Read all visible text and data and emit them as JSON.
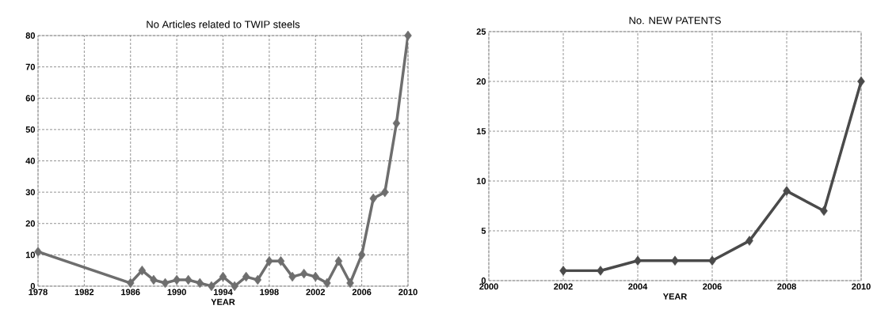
{
  "chart_data": [
    {
      "type": "line",
      "title": "No Articles related to TWIP steels",
      "xlabel": "YEAR",
      "x": [
        1978,
        1986,
        1987,
        1988,
        1989,
        1990,
        1991,
        1992,
        1993,
        1994,
        1995,
        1996,
        1997,
        1998,
        1999,
        2000,
        2001,
        2002,
        2003,
        2004,
        2005,
        2006,
        2007,
        2008,
        2009,
        2010
      ],
      "series": [
        {
          "color": "#6e6e6e",
          "values": [
            11,
            1,
            5,
            2,
            1,
            2,
            2,
            1,
            0,
            3,
            0,
            3,
            2,
            8,
            8,
            3,
            4,
            3,
            1,
            8,
            1,
            10,
            28,
            30,
            52,
            80
          ]
        }
      ],
      "xlim": [
        1978,
        2010
      ],
      "xticks": [
        1978,
        1982,
        1986,
        1990,
        1994,
        1998,
        2002,
        2006,
        2010
      ],
      "ylim": [
        0,
        80
      ],
      "yticks": [
        0,
        10,
        20,
        30,
        40,
        50,
        60,
        70,
        80
      ],
      "grid": true,
      "marker": "diamond"
    },
    {
      "type": "line",
      "title": "No.  NEW PATENTS",
      "xlabel": "YEAR",
      "x": [
        2002,
        2003,
        2004,
        2005,
        2006,
        2007,
        2008,
        2009,
        2010
      ],
      "series": [
        {
          "color": "#4a4a4a",
          "values": [
            1,
            1,
            2,
            2,
            2,
            4,
            9,
            7,
            20
          ]
        }
      ],
      "xlim": [
        2000,
        2010
      ],
      "xticks": [
        2000,
        2002,
        2004,
        2006,
        2008,
        2010
      ],
      "ylim": [
        0,
        25
      ],
      "yticks": [
        0,
        5,
        10,
        15,
        20,
        25
      ],
      "grid": true,
      "marker": "diamond"
    }
  ]
}
